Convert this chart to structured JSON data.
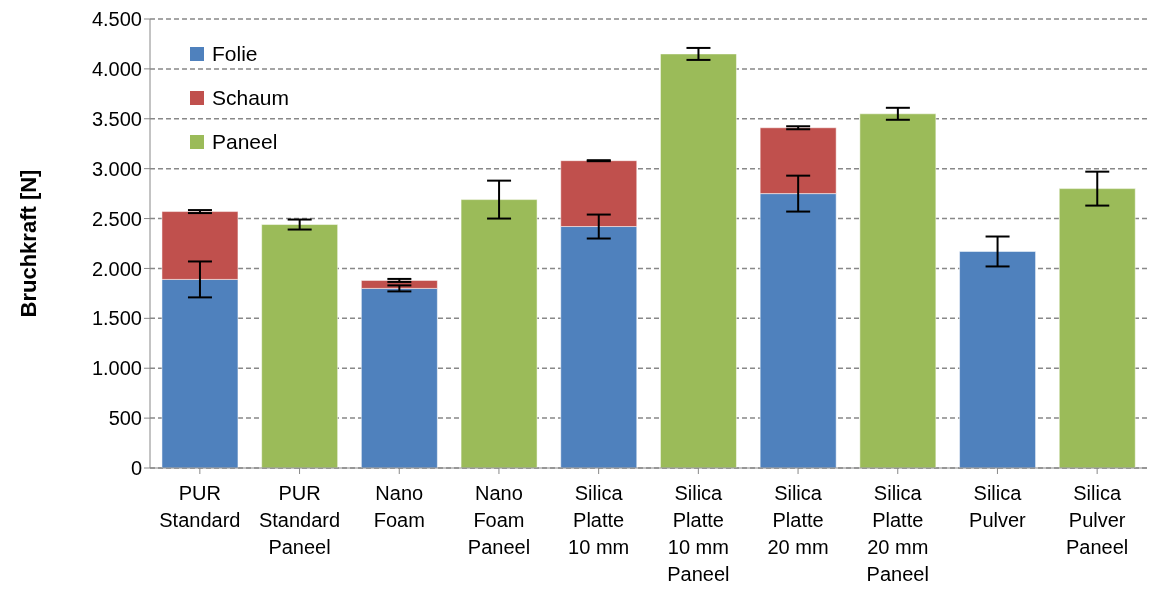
{
  "chart_data": {
    "type": "bar",
    "stacked": true,
    "ylabel": "Bruchkraft [N]",
    "categories": [
      "PUR Standard",
      "PUR Standard Paneel",
      "Nano Foam",
      "Nano Foam Paneel",
      "Silica Platte 10 mm",
      "Silica Platte 10 mm Paneel",
      "Silica Platte 20 mm",
      "Silica Platte 20 mm Paneel",
      "Silica Pulver",
      "Silica Pulver Paneel"
    ],
    "series": [
      {
        "name": "Folie",
        "color": "#4f81bd",
        "values": [
          1890,
          null,
          1800,
          null,
          2420,
          null,
          2750,
          null,
          2170,
          null
        ],
        "errors": [
          180,
          null,
          30,
          null,
          120,
          null,
          180,
          null,
          150,
          null
        ]
      },
      {
        "name": "Schaum",
        "color": "#c0504d",
        "values": [
          680,
          null,
          80,
          null,
          660,
          null,
          660,
          null,
          null,
          null
        ],
        "errors": [
          15,
          null,
          15,
          null,
          5,
          null,
          15,
          null,
          null,
          null
        ]
      },
      {
        "name": "Paneel",
        "color": "#9bbb59",
        "values": [
          null,
          2440,
          null,
          2690,
          null,
          4150,
          null,
          3550,
          null,
          2800
        ],
        "errors": [
          null,
          50,
          null,
          190,
          null,
          60,
          null,
          60,
          null,
          170
        ]
      }
    ],
    "ylim": [
      0,
      4500
    ],
    "yticks": [
      0,
      {
        "value": 500,
        "label": "500"
      },
      {
        "value": 1000,
        "label": "1.000"
      },
      {
        "value": 1500,
        "label": "1.500"
      },
      {
        "value": 2000,
        "label": "2.000"
      },
      {
        "value": 2500,
        "label": "2.500"
      },
      {
        "value": 3000,
        "label": "3.000"
      },
      {
        "value": 3500,
        "label": "3.500"
      },
      {
        "value": 4000,
        "label": "4.000"
      },
      {
        "value": 4500,
        "label": "4.500"
      }
    ],
    "grid": "y",
    "legend": "top left"
  }
}
